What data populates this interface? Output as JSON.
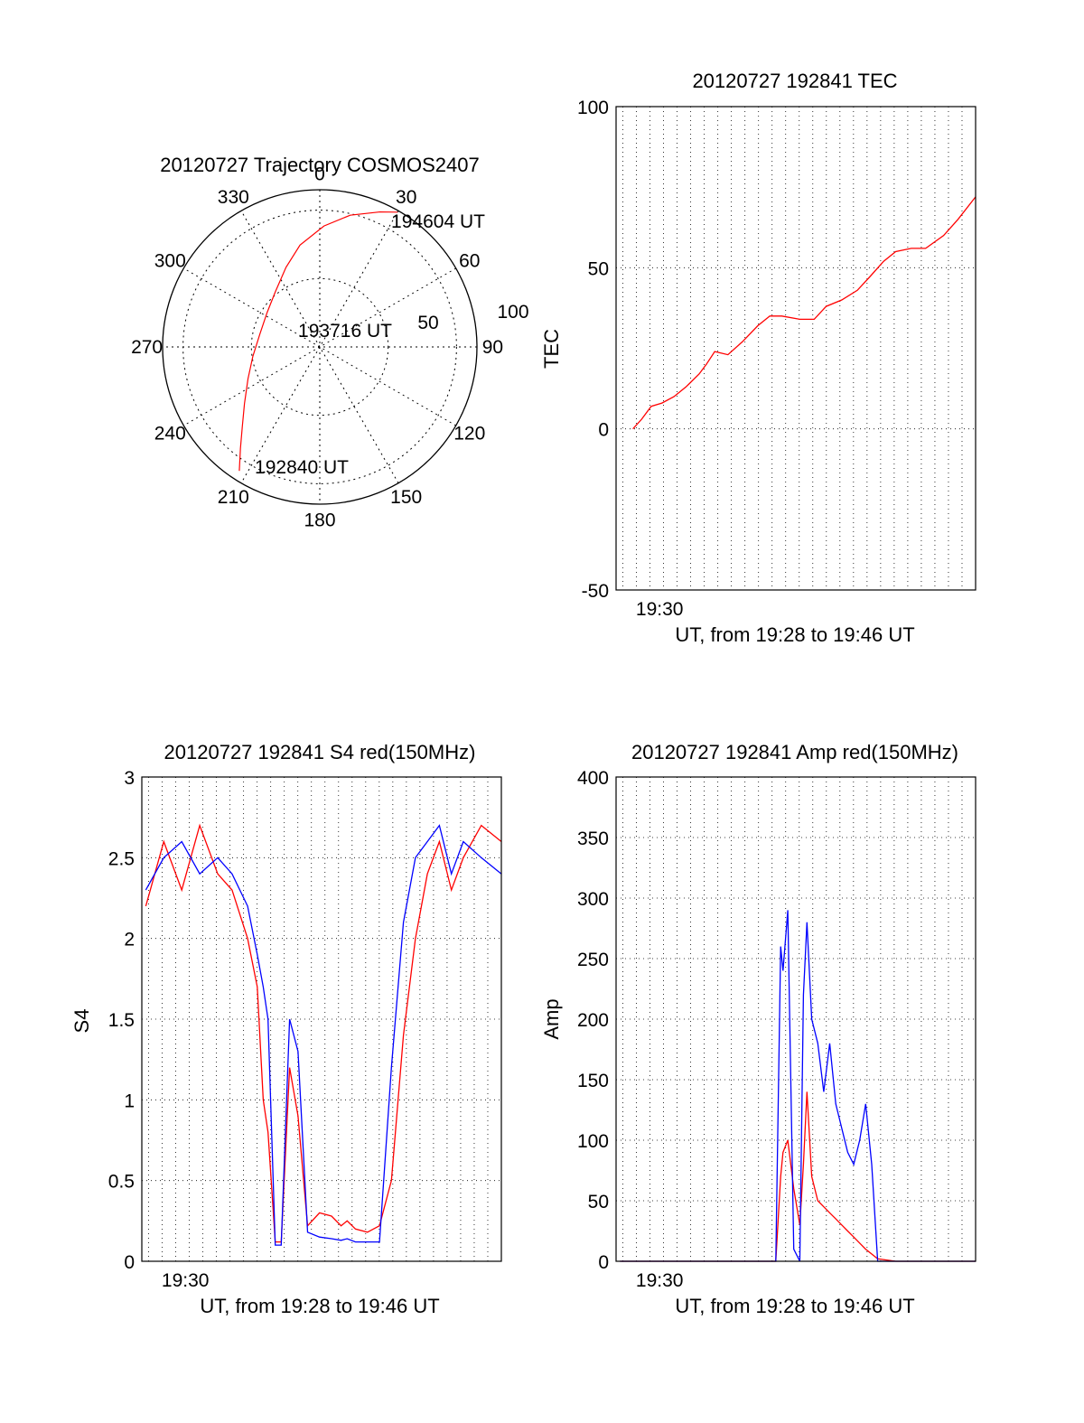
{
  "colors": {
    "red": "#ff0000",
    "blue": "#0000ff",
    "axis": "#000000"
  },
  "chart_data": [
    {
      "id": "polar",
      "type": "scatter",
      "subtype": "polar-skyplot",
      "title": "20120727 Trajectory COSMOS2407",
      "azimuth_labels": [
        "0",
        "30",
        "60",
        "90",
        "120",
        "150",
        "180",
        "210",
        "240",
        "270",
        "300",
        "330"
      ],
      "radial_labels": [
        "50",
        "100"
      ],
      "track": {
        "color": "#ff0000",
        "points": [
          {
            "az": 213,
            "r": 94
          },
          {
            "az": 218,
            "r": 82
          },
          {
            "az": 224,
            "r": 71
          },
          {
            "az": 233,
            "r": 60
          },
          {
            "az": 246,
            "r": 50
          },
          {
            "az": 262,
            "r": 43
          },
          {
            "az": 282,
            "r": 39
          },
          {
            "az": 303,
            "r": 40
          },
          {
            "az": 321,
            "r": 45
          },
          {
            "az": 337,
            "r": 55
          },
          {
            "az": 349,
            "r": 66
          },
          {
            "az": 2,
            "r": 77
          },
          {
            "az": 13,
            "r": 86
          },
          {
            "az": 24,
            "r": 94
          },
          {
            "az": 30,
            "r": 99
          }
        ]
      },
      "annotations": [
        {
          "text": "192840 UT",
          "az": 215,
          "r": 98
        },
        {
          "text": "193716 UT",
          "az": 0,
          "r": 0
        },
        {
          "text": "194604 UT",
          "az": 45,
          "r": 108
        }
      ]
    },
    {
      "id": "tec",
      "type": "line",
      "title": "20120727 192841 TEC",
      "xlabel": "UT, from 19:28 to 19:46 UT",
      "ylabel": "TEC",
      "xlim": [
        19.4667,
        19.7667
      ],
      "ylim": [
        -50,
        100
      ],
      "yticks": [
        "100",
        "50",
        "0",
        "-50"
      ],
      "ytick_values": [
        100,
        50,
        0,
        -50
      ],
      "xtick_label": "19:30",
      "xtick_value": 19.5,
      "grid": true,
      "series": [
        {
          "color": "#ff0000",
          "x": [
            19.4807,
            19.488,
            19.496,
            19.505,
            19.515,
            19.525,
            19.536,
            19.542,
            19.549,
            19.56,
            19.572,
            19.585,
            19.595,
            19.605,
            19.62,
            19.632,
            19.642,
            19.655,
            19.668,
            19.678,
            19.69,
            19.7,
            19.713,
            19.725,
            19.74,
            19.752,
            19.7667
          ],
          "y": [
            0,
            3,
            7,
            8,
            10,
            13,
            17,
            20,
            24,
            23,
            27,
            32,
            35,
            35,
            34,
            34,
            38,
            40,
            43,
            47,
            52,
            55,
            56,
            56,
            60,
            65,
            72
          ]
        }
      ]
    },
    {
      "id": "s4",
      "type": "line",
      "title": "20120727 192841 S4 red(150MHz)",
      "xlabel": "UT, from 19:28 to 19:46 UT",
      "ylabel": "S4",
      "xlim": [
        19.4667,
        19.7667
      ],
      "ylim": [
        0,
        3
      ],
      "yticks": [
        "3",
        "2.5",
        "2",
        "1.5",
        "1",
        "0.5",
        "0"
      ],
      "ytick_values": [
        3,
        2.5,
        2,
        1.5,
        1,
        0.5,
        0
      ],
      "xtick_label": "19:30",
      "xtick_value": 19.5,
      "grid": true,
      "series": [
        {
          "color": "#ff0000",
          "x": [
            19.47,
            19.485,
            19.5,
            19.515,
            19.53,
            19.542,
            19.555,
            19.563,
            19.568,
            19.572,
            19.578,
            19.583,
            19.59,
            19.597,
            19.605,
            19.615,
            19.625,
            19.633,
            19.638,
            19.645,
            19.655,
            19.665,
            19.675,
            19.685,
            19.695,
            19.705,
            19.715,
            19.725,
            19.735,
            19.75,
            19.7667
          ],
          "y": [
            2.2,
            2.6,
            2.3,
            2.7,
            2.4,
            2.3,
            2.0,
            1.7,
            1.0,
            0.8,
            0.12,
            0.12,
            1.2,
            0.9,
            0.22,
            0.3,
            0.28,
            0.22,
            0.25,
            0.2,
            0.18,
            0.22,
            0.5,
            1.4,
            2.0,
            2.4,
            2.6,
            2.3,
            2.5,
            2.7,
            2.6
          ]
        },
        {
          "color": "#0000ff",
          "x": [
            19.47,
            19.485,
            19.5,
            19.515,
            19.53,
            19.542,
            19.555,
            19.563,
            19.568,
            19.572,
            19.578,
            19.583,
            19.59,
            19.597,
            19.605,
            19.615,
            19.625,
            19.633,
            19.638,
            19.645,
            19.655,
            19.665,
            19.675,
            19.685,
            19.695,
            19.705,
            19.715,
            19.725,
            19.735,
            19.75,
            19.7667
          ],
          "y": [
            2.3,
            2.5,
            2.6,
            2.4,
            2.5,
            2.4,
            2.2,
            1.9,
            1.7,
            1.5,
            0.1,
            0.1,
            1.5,
            1.3,
            0.18,
            0.15,
            0.14,
            0.13,
            0.14,
            0.12,
            0.12,
            0.12,
            1.2,
            2.1,
            2.5,
            2.6,
            2.7,
            2.4,
            2.6,
            2.5,
            2.4
          ]
        }
      ]
    },
    {
      "id": "amp",
      "type": "line",
      "title": "20120727 192841 Amp red(150MHz)",
      "xlabel": "UT, from 19:28 to 19:46 UT",
      "ylabel": "Amp",
      "xlim": [
        19.4667,
        19.7667
      ],
      "ylim": [
        0,
        400
      ],
      "yticks": [
        "400",
        "350",
        "300",
        "250",
        "200",
        "150",
        "100",
        "50",
        "0"
      ],
      "ytick_values": [
        400,
        350,
        300,
        250,
        200,
        150,
        100,
        50,
        0
      ],
      "xtick_label": "19:30",
      "xtick_value": 19.5,
      "grid": true,
      "series": [
        {
          "color": "#ff0000",
          "x": [
            19.47,
            19.55,
            19.6,
            19.604,
            19.606,
            19.61,
            19.615,
            19.62,
            19.623,
            19.626,
            19.63,
            19.635,
            19.64,
            19.645,
            19.65,
            19.655,
            19.66,
            19.665,
            19.67,
            19.675,
            19.685,
            19.7,
            19.7667
          ],
          "y": [
            0,
            0,
            0,
            70,
            90,
            100,
            60,
            30,
            80,
            140,
            70,
            50,
            45,
            40,
            35,
            30,
            25,
            20,
            15,
            10,
            2,
            0,
            0
          ]
        },
        {
          "color": "#0000ff",
          "x": [
            19.47,
            19.55,
            19.6,
            19.604,
            19.606,
            19.61,
            19.615,
            19.62,
            19.623,
            19.626,
            19.63,
            19.635,
            19.64,
            19.645,
            19.65,
            19.655,
            19.66,
            19.665,
            19.67,
            19.675,
            19.68,
            19.685,
            19.7,
            19.7667
          ],
          "y": [
            0,
            0,
            0,
            260,
            240,
            290,
            10,
            0,
            220,
            280,
            200,
            180,
            140,
            180,
            130,
            110,
            90,
            80,
            100,
            130,
            80,
            0,
            0,
            0
          ]
        }
      ]
    }
  ]
}
